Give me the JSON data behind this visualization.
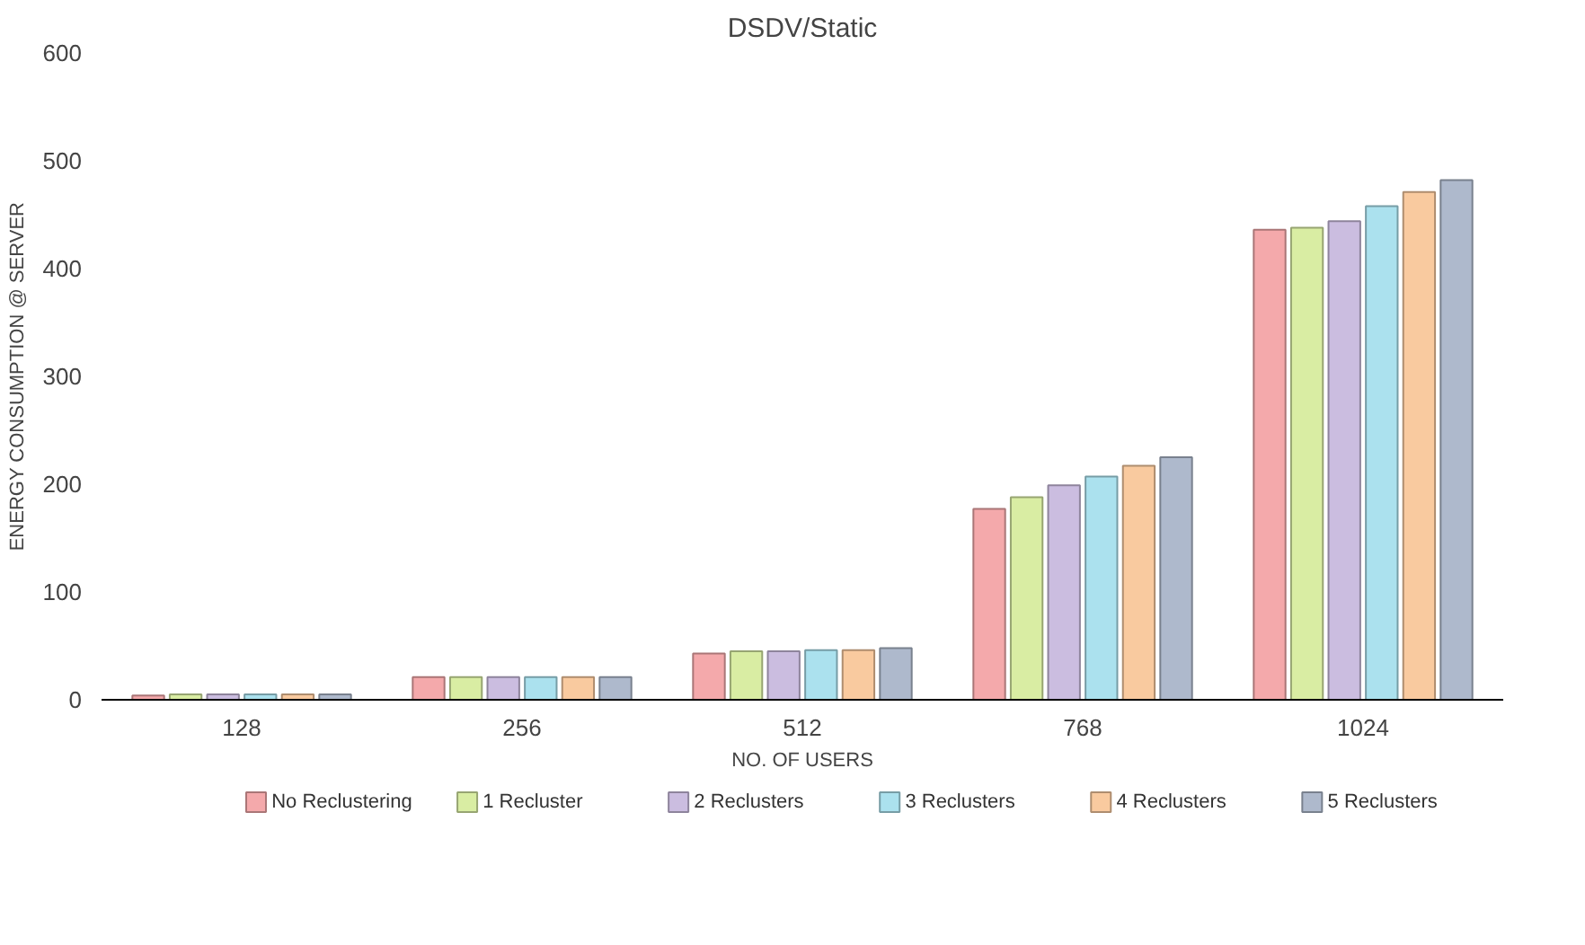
{
  "chart_data": {
    "type": "bar",
    "title": "DSDV/Static",
    "xlabel": "NO. OF USERS",
    "ylabel": "ENERGY CONSUMPTION @ SERVER",
    "categories": [
      "128",
      "256",
      "512",
      "768",
      "1024"
    ],
    "series": [
      {
        "name": "No Reclustering",
        "color": "#f4a9ab",
        "values": [
          4,
          21,
          43,
          177,
          436
        ]
      },
      {
        "name": "1 Recluster",
        "color": "#d9eda3",
        "values": [
          5,
          21,
          45,
          188,
          438
        ]
      },
      {
        "name": "2 Reclusters",
        "color": "#cbbde0",
        "values": [
          5,
          21,
          45,
          199,
          444
        ]
      },
      {
        "name": "3 Reclusters",
        "color": "#abe1ee",
        "values": [
          5,
          21,
          46,
          207,
          458
        ]
      },
      {
        "name": "4 Reclusters",
        "color": "#f9ca9f",
        "values": [
          5,
          21,
          46,
          217,
          471
        ]
      },
      {
        "name": "5 Reclusters",
        "color": "#aeb9cc",
        "values": [
          5,
          21,
          48,
          225,
          482
        ]
      }
    ],
    "ylim": [
      0,
      600
    ],
    "yticks": [
      0,
      100,
      200,
      300,
      400,
      500,
      600
    ],
    "grid": false,
    "legend": "bottom"
  }
}
